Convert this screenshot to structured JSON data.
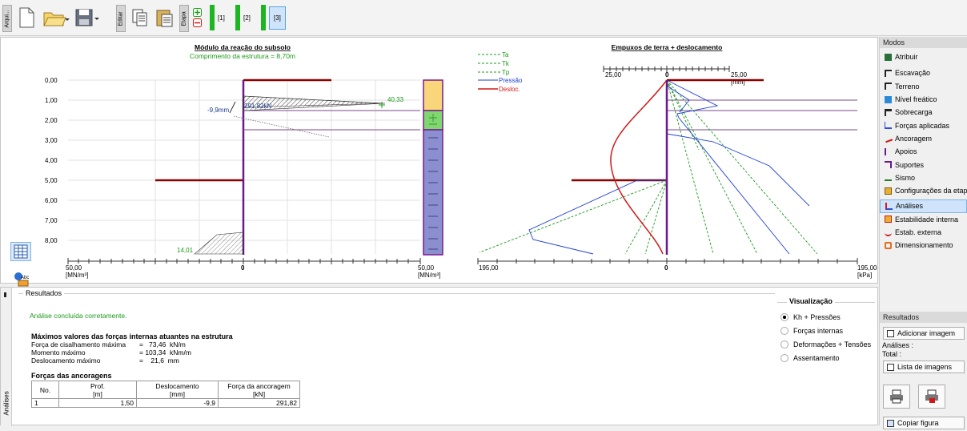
{
  "toolbar": {
    "tab_file": "Arqui...",
    "tab_edit": "Editar",
    "tab_stage": "Etapa",
    "stages": [
      "[1]",
      "[2]",
      "[3]"
    ]
  },
  "left_chart": {
    "title": "Módulo da reação do subsolo",
    "subtitle": "Comprimento da estrutura = 8,70m",
    "depth_ticks": [
      "0,00",
      "1,00",
      "2,00",
      "3,00",
      "4,00",
      "5,00",
      "6,00",
      "7,00",
      "8,00"
    ],
    "axis_left_value": "50,00",
    "axis_left_unit": "[MN/m³]",
    "axis_right_value": "50,00",
    "axis_right_unit": "[MN/m³]",
    "axis_zero": "0",
    "anchor_disp": "-9,9mm",
    "anchor_force": "291,82kN",
    "value_top": "40,33",
    "value_bottom": "14,01"
  },
  "right_chart": {
    "title": "Empuxos de terra + deslocamento",
    "legend": [
      "Ta",
      "Tk",
      "Tp",
      "Pressão",
      "Desloc."
    ],
    "disp_scale_left": "25,00",
    "disp_scale_zero": "0",
    "disp_scale_right": "25,00",
    "disp_unit": "[mm]",
    "axis_left": "195,00",
    "axis_zero": "0",
    "axis_right": "195,00",
    "axis_unit": "[kPa]"
  },
  "results": {
    "section_label": "Resultados",
    "status": "Análise concluída corretamente.",
    "max_title": "Máximos valores das forças internas atuantes na estrutura",
    "rows": [
      {
        "label": "Força de cisalhamento máxima",
        "value": "=   73,46  kN/m"
      },
      {
        "label": "Momento máximo",
        "value": "= 103,34  kNm/m"
      },
      {
        "label": "Deslocamento máximo",
        "value": "=    21,6  mm"
      }
    ],
    "anchor_title": "Forças das ancoragens",
    "table_headers": [
      "No.",
      "Prof.\n[m]",
      "Deslocamento\n[mm]",
      "Força da ancoragem\n[kN]"
    ],
    "table_rows": [
      [
        "1",
        "1,50",
        "-9,9",
        "291,82"
      ]
    ],
    "side_tab": "Análises"
  },
  "visualization": {
    "title": "Visualização",
    "options": [
      "Kh + Pressões",
      "Forças internas",
      "Deformações + Tensões",
      "Assentamento"
    ],
    "selected": "Kh + Pressões"
  },
  "modes": {
    "title": "Modos",
    "items": [
      "Atribuir",
      "Escavação",
      "Terreno",
      "Nível freático",
      "Sobrecarga",
      "Forças aplicadas",
      "Ancoragem",
      "Apoios",
      "Suportes",
      "Sismo",
      "Configurações da etapa",
      "Análises",
      "Estabilidade interna",
      "Estab. externa",
      "Dimensionamento"
    ],
    "selected": "Análises"
  },
  "results_panel": {
    "title": "Resultados",
    "add_image": "Adicionar imagem",
    "analyses_label": "Análises :",
    "total_label": "Total :",
    "image_list": "Lista de imagens",
    "copy_figure": "Copiar figura"
  }
}
